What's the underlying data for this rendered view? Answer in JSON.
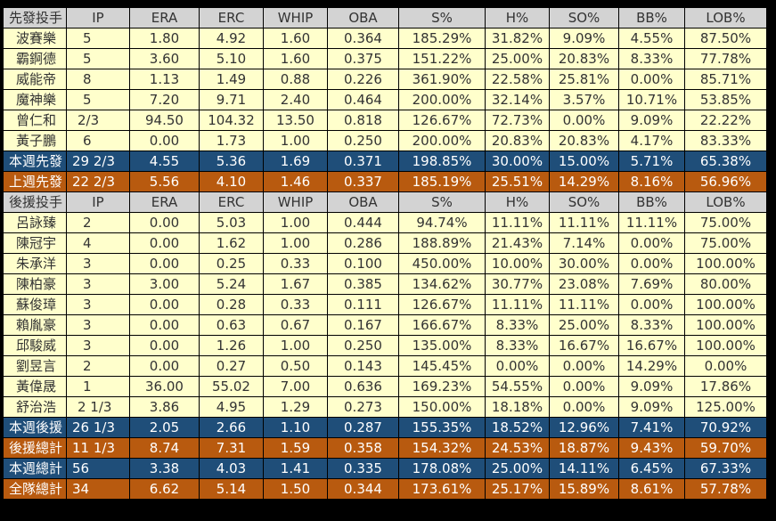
{
  "columns_tail": [
    "ERA",
    "ERC",
    "WHIP",
    "OBA",
    "S%",
    "H%",
    "SO%",
    "BB%",
    "LOB%"
  ],
  "starter_header": {
    "label": "先發投手",
    "ip": "IP"
  },
  "starters": [
    {
      "name": "波賽樂",
      "ip": "5",
      "vals": [
        "1.80",
        "4.92",
        "1.60",
        "0.364",
        "185.29%",
        "31.82%",
        "9.09%",
        "4.55%",
        "87.50%"
      ]
    },
    {
      "name": "霸錒德",
      "ip": "5",
      "vals": [
        "3.60",
        "5.10",
        "1.60",
        "0.375",
        "151.22%",
        "25.00%",
        "20.83%",
        "8.33%",
        "77.78%"
      ]
    },
    {
      "name": "威能帝",
      "ip": "8",
      "vals": [
        "1.13",
        "1.49",
        "0.88",
        "0.226",
        "361.90%",
        "22.58%",
        "25.81%",
        "0.00%",
        "85.71%"
      ]
    },
    {
      "name": "魔神樂",
      "ip": "5",
      "vals": [
        "7.20",
        "9.71",
        "2.40",
        "0.464",
        "200.00%",
        "32.14%",
        "3.57%",
        "10.71%",
        "53.85%"
      ]
    },
    {
      "name": "曾仁和",
      "ip": "2/3",
      "vals": [
        "94.50",
        "104.32",
        "13.50",
        "0.818",
        "126.67%",
        "72.73%",
        "0.00%",
        "9.09%",
        "22.22%"
      ]
    },
    {
      "name": "黃子鵬",
      "ip": "6",
      "vals": [
        "0.00",
        "1.73",
        "1.00",
        "0.250",
        "200.00%",
        "20.83%",
        "20.83%",
        "4.17%",
        "83.33%"
      ]
    }
  ],
  "starter_totals": [
    {
      "style": "blue",
      "name": "本週先發",
      "ip": "29 2/3",
      "vals": [
        "4.55",
        "5.36",
        "1.69",
        "0.371",
        "198.85%",
        "30.00%",
        "15.00%",
        "5.71%",
        "65.38%"
      ]
    },
    {
      "style": "orange",
      "name": "上週先發",
      "ip": "22 2/3",
      "vals": [
        "5.56",
        "4.10",
        "1.46",
        "0.337",
        "185.19%",
        "25.51%",
        "14.29%",
        "8.16%",
        "56.96%"
      ]
    }
  ],
  "reliever_header": {
    "label": "後援投手",
    "ip": "IP"
  },
  "relievers": [
    {
      "name": "呂詠臻",
      "ip": "2",
      "vals": [
        "0.00",
        "5.03",
        "1.00",
        "0.444",
        "94.74%",
        "11.11%",
        "11.11%",
        "11.11%",
        "75.00%"
      ]
    },
    {
      "name": "陳冠宇",
      "ip": "4",
      "vals": [
        "0.00",
        "1.62",
        "1.00",
        "0.286",
        "188.89%",
        "21.43%",
        "7.14%",
        "0.00%",
        "75.00%"
      ]
    },
    {
      "name": "朱承洋",
      "ip": "3",
      "vals": [
        "0.00",
        "0.25",
        "0.33",
        "0.100",
        "450.00%",
        "10.00%",
        "30.00%",
        "0.00%",
        "100.00%"
      ]
    },
    {
      "name": "陳柏豪",
      "ip": "3",
      "vals": [
        "3.00",
        "5.24",
        "1.67",
        "0.385",
        "134.62%",
        "30.77%",
        "23.08%",
        "7.69%",
        "80.00%"
      ]
    },
    {
      "name": "蘇俊璋",
      "ip": "3",
      "vals": [
        "0.00",
        "0.28",
        "0.33",
        "0.111",
        "126.67%",
        "11.11%",
        "11.11%",
        "0.00%",
        "100.00%"
      ]
    },
    {
      "name": "賴胤豪",
      "ip": "3",
      "vals": [
        "0.00",
        "0.63",
        "0.67",
        "0.167",
        "166.67%",
        "8.33%",
        "25.00%",
        "8.33%",
        "100.00%"
      ]
    },
    {
      "name": "邱駿威",
      "ip": "3",
      "vals": [
        "0.00",
        "1.26",
        "1.00",
        "0.250",
        "135.00%",
        "8.33%",
        "16.67%",
        "16.67%",
        "100.00%"
      ]
    },
    {
      "name": "劉昱言",
      "ip": "2",
      "vals": [
        "0.00",
        "0.27",
        "0.50",
        "0.143",
        "145.45%",
        "0.00%",
        "0.00%",
        "14.29%",
        "0.00%"
      ]
    },
    {
      "name": "黃偉晟",
      "ip": "1",
      "vals": [
        "36.00",
        "55.02",
        "7.00",
        "0.636",
        "169.23%",
        "54.55%",
        "0.00%",
        "9.09%",
        "17.86%"
      ]
    },
    {
      "name": "舒治浩",
      "ip": "2 1/3",
      "vals": [
        "3.86",
        "4.95",
        "1.29",
        "0.273",
        "150.00%",
        "18.18%",
        "0.00%",
        "9.09%",
        "125.00%"
      ]
    }
  ],
  "reliever_totals": [
    {
      "style": "blue",
      "name": "本週後援",
      "ip": "26 1/3",
      "vals": [
        "2.05",
        "2.66",
        "1.10",
        "0.287",
        "155.35%",
        "18.52%",
        "12.96%",
        "7.41%",
        "70.92%"
      ]
    },
    {
      "style": "orange",
      "name": "後援總計",
      "ip": "11 1/3",
      "vals": [
        "8.74",
        "7.31",
        "1.59",
        "0.358",
        "154.32%",
        "24.53%",
        "18.87%",
        "9.43%",
        "59.70%"
      ]
    },
    {
      "style": "blue",
      "name": "本週總計",
      "ip": "56",
      "vals": [
        "3.38",
        "4.03",
        "1.41",
        "0.335",
        "178.08%",
        "25.00%",
        "14.11%",
        "6.45%",
        "67.33%"
      ]
    },
    {
      "style": "orange",
      "name": "全隊總計",
      "ip": "34",
      "vals": [
        "6.62",
        "5.14",
        "1.50",
        "0.344",
        "173.61%",
        "25.17%",
        "15.89%",
        "8.61%",
        "57.78%"
      ]
    }
  ]
}
